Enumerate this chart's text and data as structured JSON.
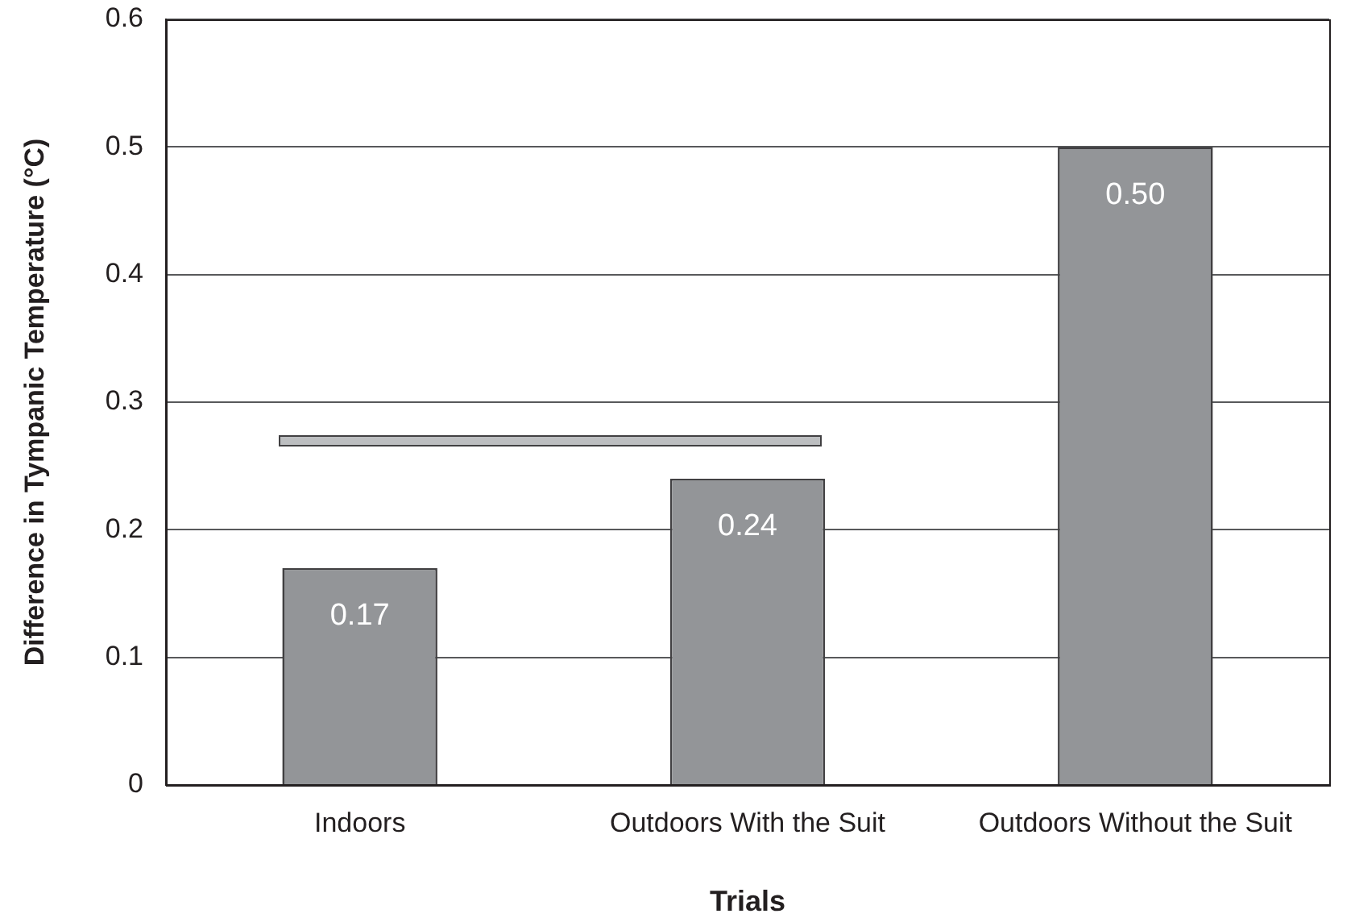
{
  "chart_data": {
    "type": "bar",
    "xlabel": "Trials",
    "ylabel": "Difference in Tympanic Temperature (°C)",
    "categories": [
      "Indoors",
      "Outdoors With the Suit",
      "Outdoors Without the Suit"
    ],
    "values": [
      0.17,
      0.24,
      0.5
    ],
    "value_labels": [
      "0.17",
      "0.24",
      "0.50"
    ],
    "color": "#939598",
    "ylim": [
      0,
      0.6
    ],
    "yticks": [
      0,
      0.1,
      0.2,
      0.3,
      0.4,
      0.5,
      0.6
    ],
    "grid": "y"
  }
}
